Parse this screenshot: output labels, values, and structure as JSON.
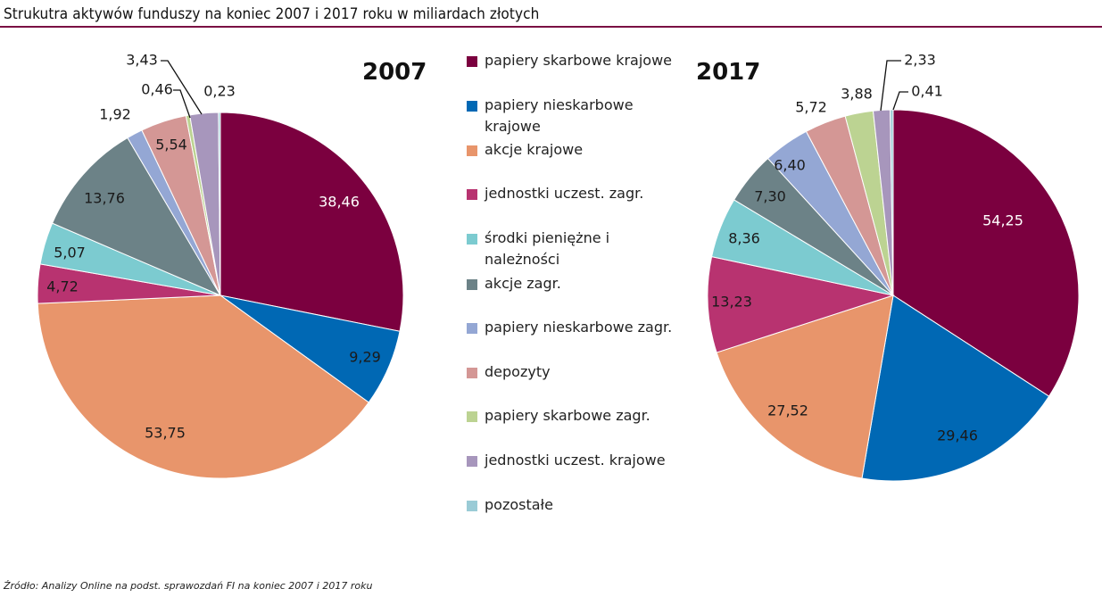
{
  "title": "Strukutra aktywów funduszy na koniec 2007 i 2017 roku w miliardach złotych",
  "source": "Źródło: Analizy Online na podst. sprawozdań FI na koniec 2007 i 2017 roku",
  "chart_data": [
    {
      "type": "pie",
      "title": "2007",
      "categories": [
        "papiery skarbowe krajowe",
        "papiery nieskarbowe krajowe",
        "akcje krajowe",
        "jednostki uczest. zagr.",
        "środki pieniężne i należności",
        "akcje zagr.",
        "papiery nieskarbowe zagr.",
        "depozyty",
        "papiery skarbowe zagr.",
        "jednostki uczest. krajowe",
        "pozostałe"
      ],
      "values": [
        38.46,
        9.29,
        53.75,
        4.72,
        5.07,
        13.76,
        1.92,
        5.54,
        0.46,
        3.43,
        0.23
      ],
      "labels": [
        "38,46",
        "9,29",
        "53,75",
        "4,72",
        "5,07",
        "13,76",
        "1,92",
        "5,54",
        "0,46",
        "3,43",
        "0,23"
      ]
    },
    {
      "type": "pie",
      "title": "2017",
      "categories": [
        "papiery skarbowe krajowe",
        "papiery nieskarbowe krajowe",
        "akcje krajowe",
        "jednostki uczest. zagr.",
        "środki pieniężne i należności",
        "akcje zagr.",
        "papiery nieskarbowe zagr.",
        "depozyty",
        "papiery skarbowe zagr.",
        "jednostki uczest. krajowe",
        "pozostałe"
      ],
      "values": [
        54.25,
        29.46,
        27.52,
        13.23,
        8.36,
        7.3,
        6.4,
        5.72,
        3.88,
        2.33,
        0.41
      ],
      "labels": [
        "54,25",
        "29,46",
        "27,52",
        "13,23",
        "8,36",
        "7,30",
        "6,40",
        "5,72",
        "3,88",
        "2,33",
        "0,41"
      ]
    }
  ],
  "legend": {
    "position": "center",
    "items": [
      "papiery skarbowe krajowe",
      "papiery nieskarbowe krajowe",
      "akcje krajowe",
      "jednostki uczest. zagr.",
      "środki pieniężne i należności",
      "akcje zagr.",
      "papiery nieskarbowe zagr.",
      "depozyty",
      "papiery skarbowe zagr.",
      "jednostki uczest. krajowe",
      "pozostałe"
    ]
  },
  "colors": [
    "#7b003f",
    "#0068b4",
    "#e8956b",
    "#b83370",
    "#7ccbd0",
    "#6c8287",
    "#94a7d4",
    "#d49795",
    "#bcd392",
    "#a796bc",
    "#9acbd6"
  ],
  "label_colors": [
    "#ffffff",
    "#1a1a1a",
    "#1a1a1a",
    "#1a1a1a",
    "#1a1a1a",
    "#1a1a1a",
    "#1a1a1a",
    "#1a1a1a",
    "#1a1a1a",
    "#1a1a1a",
    "#1a1a1a"
  ]
}
